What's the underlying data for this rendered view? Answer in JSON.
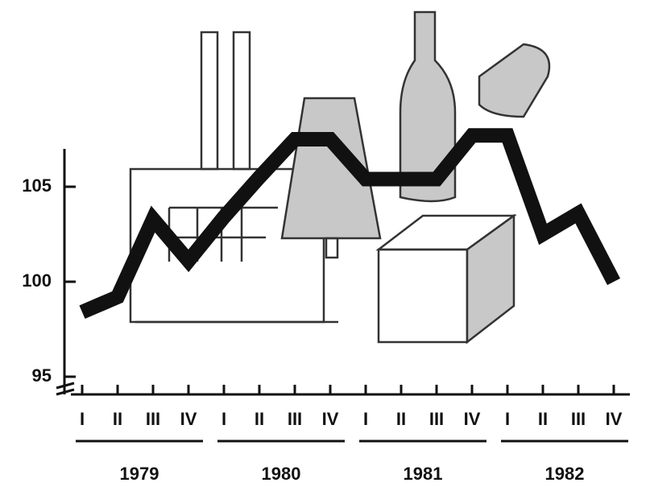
{
  "chart_data": {
    "type": "line",
    "categories": [
      "I",
      "II",
      "III",
      "IV",
      "I",
      "II",
      "III",
      "IV",
      "I",
      "II",
      "III",
      "IV",
      "I",
      "II",
      "III",
      "IV"
    ],
    "years": [
      "1979",
      "1980",
      "1981",
      "1982"
    ],
    "values": [
      98.4,
      99.2,
      103.3,
      101.1,
      103.4,
      105.5,
      107.5,
      107.5,
      105.4,
      105.4,
      105.4,
      107.7,
      107.7,
      102.5,
      103.6,
      100.0
    ],
    "color": "#111111",
    "ylim": [
      94,
      110
    ],
    "yticks": [
      95,
      100,
      105
    ]
  }
}
